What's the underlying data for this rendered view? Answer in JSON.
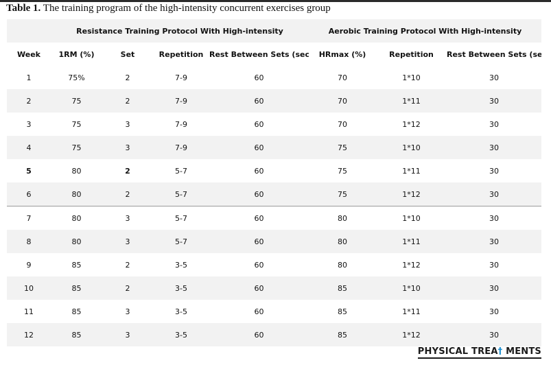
{
  "caption": {
    "label": "Table 1.",
    "text": " The training program of the high-intensity concurrent exercises group"
  },
  "table": {
    "groups": {
      "resistance": "Resistance Training Protocol With High-intensity",
      "aerobic": "Aerobic Training Protocol With High-intensity"
    },
    "columns": [
      "Week",
      "1RM (%)",
      "Set",
      "Repetition",
      "Rest Between Sets (sec)",
      "HRmax (%)",
      "Repetition",
      "Rest Between Sets (sec)"
    ],
    "rows": [
      [
        "1",
        "75%",
        "2",
        "7-9",
        "60",
        "70",
        "1*10",
        "30"
      ],
      [
        "2",
        "75",
        "2",
        "7-9",
        "60",
        "70",
        "1*11",
        "30"
      ],
      [
        "3",
        "75",
        "3",
        "7-9",
        "60",
        "70",
        "1*12",
        "30"
      ],
      [
        "4",
        "75",
        "3",
        "7-9",
        "60",
        "75",
        "1*10",
        "30"
      ],
      [
        "5",
        "80",
        "2",
        "5-7",
        "60",
        "75",
        "1*11",
        "30"
      ],
      [
        "6",
        "80",
        "2",
        "5-7",
        "60",
        "75",
        "1*12",
        "30"
      ],
      [
        "7",
        "80",
        "3",
        "5-7",
        "60",
        "80",
        "1*10",
        "30"
      ],
      [
        "8",
        "80",
        "3",
        "5-7",
        "60",
        "80",
        "1*11",
        "30"
      ],
      [
        "9",
        "85",
        "2",
        "3-5",
        "60",
        "80",
        "1*12",
        "30"
      ],
      [
        "10",
        "85",
        "2",
        "3-5",
        "60",
        "85",
        "1*10",
        "30"
      ],
      [
        "11",
        "85",
        "3",
        "3-5",
        "60",
        "85",
        "1*11",
        "30"
      ],
      [
        "12",
        "85",
        "3",
        "3-5",
        "60",
        "85",
        "1*12",
        "30"
      ]
    ]
  },
  "brand": {
    "part1": "PHYSICAL TREA",
    "part2": "†",
    "part3": " MENTS"
  }
}
